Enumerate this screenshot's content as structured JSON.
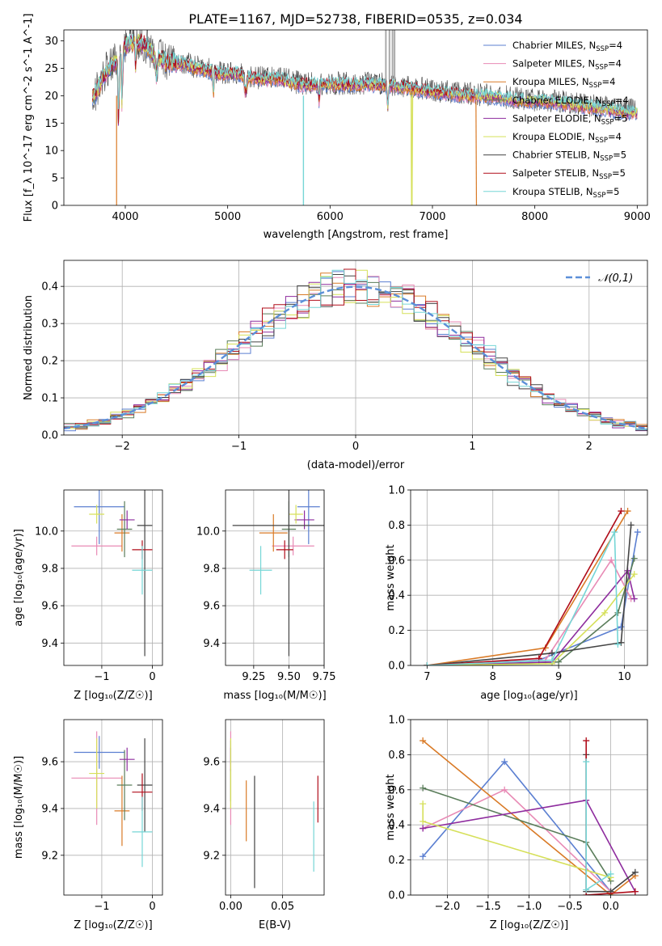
{
  "chart_data": [
    {
      "id": "spectrum",
      "type": "line",
      "title": "PLATE=1167, MJD=52738, FIBERID=0535, z=0.034",
      "xlabel": "wavelength [Angstrom, rest frame]",
      "ylabel": "Flux [f_λ 10^-17 erg cm^-2 s^-1 A^-1]",
      "xlim": [
        3400,
        9100
      ],
      "ylim": [
        0,
        32
      ],
      "xticks": [
        4000,
        5000,
        6000,
        7000,
        8000,
        9000
      ],
      "yticks": [
        0,
        5,
        10,
        15,
        20,
        25,
        30
      ],
      "grid": false,
      "legend_placement": "right",
      "data_wavelength": [
        3700,
        3800,
        3900,
        4000,
        4100,
        4200,
        4300,
        4400,
        4500,
        4700,
        4900,
        5100,
        5300,
        5500,
        5700,
        5900,
        6100,
        6300,
        6500,
        6700,
        6900,
        7100,
        7300,
        7500,
        7700,
        7900,
        8100,
        8300,
        8500,
        8700,
        8900
      ],
      "data_flux": [
        20,
        24,
        26,
        29,
        30,
        29,
        27,
        26,
        26,
        25,
        24,
        24,
        23,
        23,
        22,
        22,
        22,
        22,
        22,
        21.5,
        21,
        20.5,
        20,
        20,
        19.5,
        19,
        19,
        18.5,
        18,
        17.5,
        17
      ],
      "series": [
        {
          "name": "Chabrier MILES",
          "nssp": "4",
          "color": "#5b7fd1"
        },
        {
          "name": "Salpeter MILES",
          "nssp": "4",
          "color": "#e88ab5"
        },
        {
          "name": "Kroupa MILES",
          "nssp": "4",
          "color": "#d97a26"
        },
        {
          "name": "Chabrier ELODIE",
          "nssp": "4",
          "color": "#5a7d5a"
        },
        {
          "name": "Salpeter ELODIE",
          "nssp": "5",
          "color": "#8e2c9e"
        },
        {
          "name": "Kroupa ELODIE",
          "nssp": "4",
          "color": "#d6e05a"
        },
        {
          "name": "Chabrier STELIB",
          "nssp": "5",
          "color": "#444444"
        },
        {
          "name": "Salpeter STELIB",
          "nssp": "5",
          "color": "#b00d1a"
        },
        {
          "name": "Kroupa STELIB",
          "nssp": "5",
          "color": "#76d6d6"
        }
      ]
    },
    {
      "id": "residuals",
      "type": "line",
      "xlabel": "(data-model)/error",
      "ylabel": "Normed distribution",
      "xlim": [
        -2.5,
        2.5
      ],
      "ylim": [
        0,
        0.47
      ],
      "xticks": [
        -2,
        -1,
        0,
        1,
        2
      ],
      "yticks": [
        0.0,
        0.1,
        0.2,
        0.3,
        0.4
      ],
      "grid": true,
      "legend": "𝒩(0,1)",
      "legend_placement": "top-right",
      "gaussian_color": "#5b8fd8"
    },
    {
      "id": "age-vs-Z",
      "type": "scatter",
      "xlabel": "Z [log10(Z/Z☉)]",
      "ylabel": "age  [log10(age/yr)]",
      "xlim": [
        -1.75,
        0.2
      ],
      "ylim": [
        9.28,
        10.22
      ],
      "xticks": [
        -1,
        0
      ],
      "yticks": [
        9.4,
        9.6,
        9.8,
        10.0
      ],
      "grid": true,
      "points": [
        {
          "x": -1.05,
          "y": 10.13,
          "xerr": 0.5,
          "yerr": 0.2
        },
        {
          "x": -1.1,
          "y": 9.92,
          "xerr": 0.5,
          "yerr": 0.05
        },
        {
          "x": -0.6,
          "y": 9.99,
          "xerr": 0.15,
          "yerr": 0.1
        },
        {
          "x": -0.55,
          "y": 10.01,
          "xerr": 0.15,
          "yerr": 0.15
        },
        {
          "x": -0.5,
          "y": 10.06,
          "xerr": 0.15,
          "yerr": 0.05
        },
        {
          "x": -1.1,
          "y": 10.09,
          "xerr": 0.15,
          "yerr": 0.05
        },
        {
          "x": -0.15,
          "y": 10.03,
          "xerr": 0.15,
          "yerr": 0.7
        },
        {
          "x": -0.2,
          "y": 9.9,
          "xerr": 0.2,
          "yerr": 0.05
        },
        {
          "x": -0.2,
          "y": 9.79,
          "xerr": 0.2,
          "yerr": 0.13
        }
      ]
    },
    {
      "id": "age-vs-mass",
      "type": "scatter",
      "xlabel": "mass [log10(M/M☉)]",
      "ylabel": "",
      "xlim": [
        9.05,
        9.75
      ],
      "ylim": [
        9.28,
        10.22
      ],
      "xticks": [
        9.25,
        9.5,
        9.75
      ],
      "yticks": [
        9.4,
        9.6,
        9.8,
        10.0
      ],
      "grid": true,
      "points": [
        {
          "x": 9.64,
          "y": 10.13,
          "xerr": 0.08,
          "yerr": 0.2
        },
        {
          "x": 9.53,
          "y": 9.92,
          "xerr": 0.15,
          "yerr": 0.05
        },
        {
          "x": 9.39,
          "y": 9.99,
          "xerr": 0.1,
          "yerr": 0.1
        },
        {
          "x": 9.5,
          "y": 10.01,
          "xerr": 0.05,
          "yerr": 0.15
        },
        {
          "x": 9.61,
          "y": 10.06,
          "xerr": 0.07,
          "yerr": 0.05
        },
        {
          "x": 9.55,
          "y": 10.09,
          "xerr": 0.05,
          "yerr": 0.05
        },
        {
          "x": 9.5,
          "y": 10.03,
          "xerr": 0.4,
          "yerr": 0.7
        },
        {
          "x": 9.47,
          "y": 9.9,
          "xerr": 0.06,
          "yerr": 0.05
        },
        {
          "x": 9.3,
          "y": 9.79,
          "xerr": 0.08,
          "yerr": 0.13
        }
      ]
    },
    {
      "id": "massweight-vs-age",
      "type": "line",
      "xlabel": "age  [log10(age/yr)]",
      "ylabel": "mass weight",
      "xlim": [
        6.75,
        10.35
      ],
      "ylim": [
        0,
        1
      ],
      "xticks": [
        7,
        8,
        9,
        10
      ],
      "yticks": [
        0.0,
        0.2,
        0.4,
        0.6,
        0.8,
        1.0
      ],
      "grid": true
    },
    {
      "id": "mass-vs-Z",
      "type": "scatter",
      "xlabel": "Z [log10(Z/Z☉)]",
      "ylabel": "mass [log10(M/M☉)]",
      "xlim": [
        -1.75,
        0.2
      ],
      "ylim": [
        9.03,
        9.78
      ],
      "xticks": [
        -1,
        0
      ],
      "yticks": [
        9.2,
        9.4,
        9.6
      ],
      "grid": true,
      "points": [
        {
          "x": -1.05,
          "y": 9.64,
          "xerr": 0.5,
          "yerr": 0.07
        },
        {
          "x": -1.1,
          "y": 9.53,
          "xerr": 0.5,
          "yerr": 0.2
        },
        {
          "x": -0.6,
          "y": 9.39,
          "xerr": 0.15,
          "yerr": 0.15
        },
        {
          "x": -0.55,
          "y": 9.5,
          "xerr": 0.15,
          "yerr": 0.15
        },
        {
          "x": -0.5,
          "y": 9.61,
          "xerr": 0.15,
          "yerr": 0.05
        },
        {
          "x": -1.1,
          "y": 9.55,
          "xerr": 0.15,
          "yerr": 0.15
        },
        {
          "x": -0.15,
          "y": 9.5,
          "xerr": 0.15,
          "yerr": 0.2
        },
        {
          "x": -0.2,
          "y": 9.47,
          "xerr": 0.2,
          "yerr": 0.08
        },
        {
          "x": -0.2,
          "y": 9.3,
          "xerr": 0.2,
          "yerr": 0.15
        }
      ]
    },
    {
      "id": "mass-vs-ebv",
      "type": "scatter",
      "xlabel": "E(B-V)",
      "ylabel": "",
      "xlim": [
        -0.005,
        0.09
      ],
      "ylim": [
        9.03,
        9.78
      ],
      "xticks": [
        0.0,
        0.05
      ],
      "yticks": [
        9.2,
        9.4,
        9.6
      ],
      "grid": true,
      "points": [
        {
          "x": 0.0,
          "y": 9.64,
          "xerr": 0,
          "yerr": 0.05
        },
        {
          "x": 0.0,
          "y": 9.53,
          "xerr": 0,
          "yerr": 0.2
        },
        {
          "x": 0.015,
          "y": 9.39,
          "xerr": 0,
          "yerr": 0.13
        },
        {
          "x": 0.0,
          "y": 9.5,
          "xerr": 0,
          "yerr": 0.07
        },
        {
          "x": 0.0,
          "y": 9.61,
          "xerr": 0,
          "yerr": 0.05
        },
        {
          "x": 0.0,
          "y": 9.55,
          "xerr": 0,
          "yerr": 0.15
        },
        {
          "x": 0.023,
          "y": 9.3,
          "xerr": 0,
          "yerr": 0.24
        },
        {
          "x": 0.084,
          "y": 9.44,
          "xerr": 0,
          "yerr": 0.1
        },
        {
          "x": 0.08,
          "y": 9.28,
          "xerr": 0,
          "yerr": 0.15
        }
      ]
    },
    {
      "id": "massweight-vs-Z",
      "type": "line",
      "xlabel": "Z [log10(Z/Z☉)]",
      "ylabel": "mass weight",
      "xlim": [
        -2.45,
        0.45
      ],
      "ylim": [
        0,
        1
      ],
      "xticks": [
        -2.0,
        -1.5,
        -1.0,
        -0.5,
        0.0
      ],
      "yticks": [
        0.0,
        0.2,
        0.4,
        0.6,
        0.8,
        1.0
      ],
      "grid": true
    }
  ]
}
